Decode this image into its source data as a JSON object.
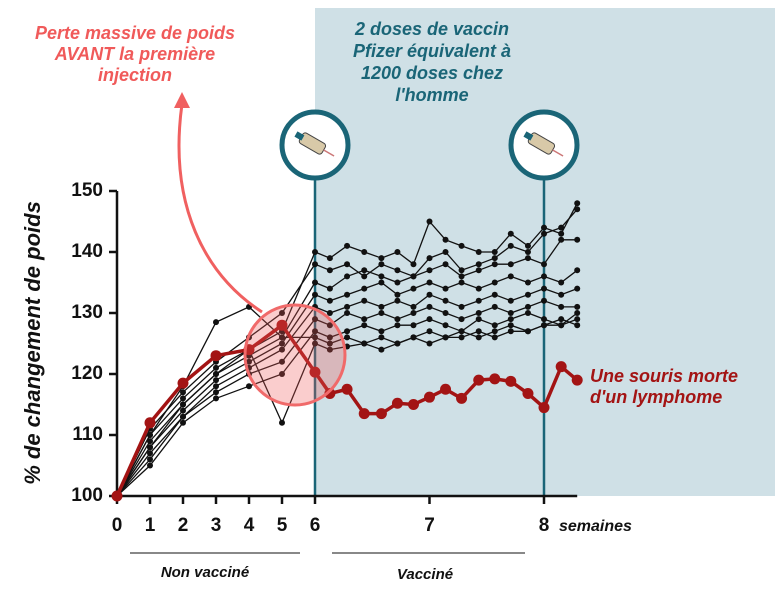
{
  "chart_data": {
    "type": "line",
    "ylabel": "% de changement de poids",
    "xunit": "semaines",
    "annotations": {
      "weight_loss": [
        "Perte massive de poids",
        "AVANT la première",
        "injection"
      ],
      "vaccine": [
        "2 doses de vaccin",
        "Pfizer équivalent à",
        "1200 doses chez",
        "l'homme"
      ],
      "dead_mouse": [
        "Une souris morte",
        "d'un lymphome"
      ],
      "non_vaccinated": "Non vacciné",
      "vaccinated": "Vacciné"
    },
    "x": [
      0,
      1,
      2,
      3,
      4,
      5,
      6,
      6.13,
      6.28,
      6.43,
      6.58,
      6.72,
      6.86,
      7.0,
      7.14,
      7.28,
      7.43,
      7.57,
      7.71,
      7.86,
      8.0,
      8.15,
      8.29
    ],
    "xlim": [
      0,
      8.29
    ],
    "xticks": [
      0,
      1,
      2,
      3,
      4,
      5,
      6,
      7,
      8
    ],
    "ylim": [
      100,
      150
    ],
    "yticks": [
      100,
      110,
      120,
      130,
      140,
      150
    ],
    "vaccination_weeks": [
      6,
      8
    ],
    "series": [
      {
        "color": "#111111",
        "values": [
          100,
          110,
          116,
          121,
          124,
          127,
          140,
          139,
          141,
          140,
          139,
          140,
          138,
          145,
          142,
          141,
          140,
          140,
          143,
          141,
          144,
          143,
          148
        ]
      },
      {
        "color": "#111111",
        "values": [
          100,
          111,
          117,
          122,
          126,
          130,
          138,
          137,
          138,
          136,
          138,
          137,
          136,
          139,
          140,
          137,
          138,
          139,
          141,
          140,
          143,
          144,
          147
        ]
      },
      {
        "color": "#111111",
        "values": [
          100,
          109,
          115,
          120,
          123,
          126,
          135,
          134,
          136,
          137,
          136,
          135,
          136,
          137,
          138,
          136,
          137,
          138,
          138,
          139,
          138,
          142,
          142
        ]
      },
      {
        "color": "#111111",
        "values": [
          100,
          108,
          114,
          119,
          122,
          125,
          133,
          132,
          133,
          134,
          135,
          133,
          134,
          135,
          134,
          135,
          134,
          135,
          136,
          135,
          136,
          135,
          137
        ]
      },
      {
        "color": "#111111",
        "values": [
          100,
          107,
          113,
          118,
          121,
          124,
          131,
          130,
          131,
          132,
          131,
          132,
          131,
          133,
          132,
          131,
          132,
          133,
          132,
          133,
          134,
          133,
          134
        ]
      },
      {
        "color": "#111111",
        "values": [
          100,
          106,
          113,
          117,
          120,
          122,
          129,
          128,
          130,
          129,
          130,
          129,
          130,
          131,
          130,
          129,
          130,
          131,
          130,
          131,
          132,
          131,
          131
        ]
      },
      {
        "color": "#111111",
        "values": [
          100,
          105,
          112,
          116,
          118,
          120,
          127,
          126,
          127,
          128,
          127,
          128,
          128,
          129,
          128,
          127,
          129,
          128,
          129,
          130,
          129,
          128,
          130
        ]
      },
      {
        "color": "#111111",
        "values": [
          100,
          110,
          118,
          128.5,
          131,
          126,
          126,
          125,
          126,
          125,
          126,
          125,
          126,
          127,
          126,
          127,
          126,
          127,
          128,
          127,
          128,
          129,
          128
        ]
      },
      {
        "color": "#111111",
        "values": [
          100,
          108,
          115,
          120,
          124,
          112,
          125,
          124,
          124.5,
          125,
          124,
          125,
          126,
          125,
          126,
          126,
          127,
          126,
          127,
          127,
          128,
          128,
          129
        ]
      },
      {
        "color": "#a31414",
        "values": [
          100,
          112,
          118.5,
          123,
          124,
          128,
          120.3,
          116.8,
          117.5,
          113.5,
          113.5,
          115.2,
          115,
          116.2,
          117.5,
          116,
          119,
          119.2,
          118.8,
          116.8,
          114.5,
          121.2,
          119
        ]
      }
    ]
  }
}
